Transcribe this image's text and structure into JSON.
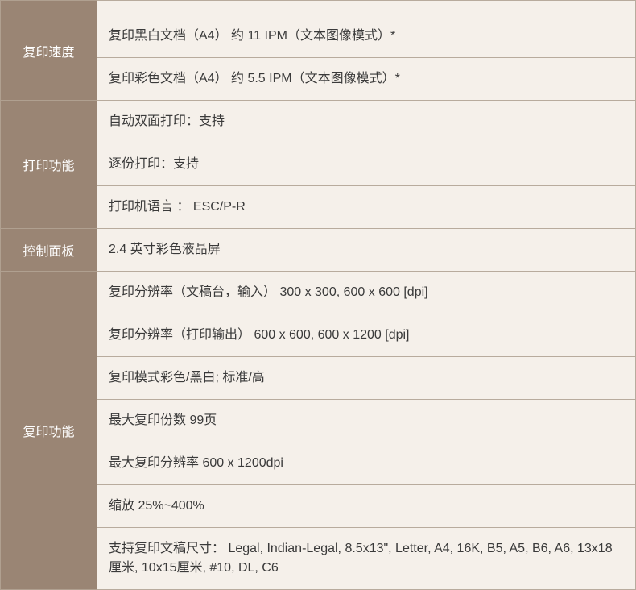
{
  "colors": {
    "label_bg": "#9a8574",
    "label_text": "#ffffff",
    "value_bg": "#f5f0ea",
    "value_text": "#3a3a3a",
    "border": "#b8ab9d"
  },
  "typography": {
    "font_family": "Microsoft YaHei, PingFang SC, sans-serif",
    "font_size_pt": 12
  },
  "sections": {
    "copy_speed": {
      "label": "复印速度",
      "rows": [
        "复印黑白文档（A4）  约 11 IPM（文本图像模式）*",
        "复印彩色文档（A4）  约 5.5 IPM（文本图像模式）*"
      ]
    },
    "print_func": {
      "label": "打印功能",
      "rows": [
        "自动双面打印：支持",
        "逐份打印：支持",
        "打印机语言 ： ESC/P-R"
      ]
    },
    "control_panel": {
      "label": "控制面板",
      "rows": [
        "2.4 英寸彩色液晶屏"
      ]
    },
    "copy_func": {
      "label": "复印功能",
      "rows": [
        "复印分辨率（文稿台，输入）   300 x 300, 600 x 600 [dpi]",
        "复印分辨率（打印输出）     600 x 600, 600 x 1200 [dpi]",
        "复印模式彩色/黑白; 标准/高",
        "最大复印份数   99页",
        "最大复印分辨率    600 x 1200dpi",
        "缩放  25%~400%",
        "支持复印文稿尺寸：   Legal, Indian-Legal, 8.5x13\", Letter, A4, 16K, B5, A5, B6, A6, 13x18厘米, 10x15厘米, #10, DL, C6"
      ]
    }
  }
}
